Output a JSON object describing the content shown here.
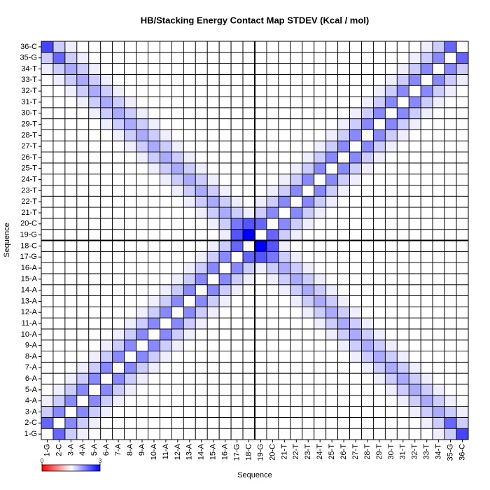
{
  "chart_data": {
    "type": "heatmap",
    "title": "HB/Stacking Energy Contact Map STDEV (Kcal / mol)",
    "x_label": "Sequence",
    "y_label": "Sequence",
    "x_categories": [
      "1-G",
      "2-C",
      "3-A",
      "4-A",
      "5-A",
      "6-A",
      "7-A",
      "8-A",
      "9-A",
      "10-A",
      "11-A",
      "12-A",
      "13-A",
      "14-A",
      "15-A",
      "16-A",
      "17-G",
      "18-C",
      "19-G",
      "20-C",
      "21-T",
      "22-T",
      "23-T",
      "24-T",
      "25-T",
      "26-T",
      "27-T",
      "28-T",
      "29-T",
      "30-T",
      "31-T",
      "32-T",
      "33-T",
      "34-T",
      "35-G",
      "36-C"
    ],
    "y_categories": [
      "1-G",
      "2-C",
      "3-A",
      "4-A",
      "5-A",
      "6-A",
      "7-A",
      "8-A",
      "9-A",
      "10-A",
      "11-A",
      "12-A",
      "13-A",
      "14-A",
      "15-A",
      "16-A",
      "17-G",
      "18-C",
      "19-G",
      "20-C",
      "21-T",
      "22-T",
      "23-T",
      "24-T",
      "25-T",
      "26-T",
      "27-T",
      "28-T",
      "29-T",
      "30-T",
      "31-T",
      "32-T",
      "33-T",
      "34-T",
      "35-G",
      "36-C"
    ],
    "colorbar": {
      "lim": [
        0,
        3
      ],
      "ticks": [
        0,
        3
      ],
      "colors": [
        "#ff0000",
        "#ffffff",
        "#0000ff"
      ]
    },
    "values": [
      [
        1.5,
        2.4,
        1.8,
        1.6,
        1.5,
        1.5,
        1.5,
        1.5,
        1.5,
        1.5,
        1.5,
        1.5,
        1.5,
        1.5,
        1.5,
        1.5,
        1.5,
        1.5,
        1.5,
        1.5,
        1.5,
        1.5,
        1.5,
        1.5,
        1.5,
        1.5,
        1.5,
        1.5,
        1.5,
        1.5,
        1.5,
        1.5,
        1.5,
        1.6,
        1.8,
        2.6
      ],
      [
        2.4,
        1.5,
        2.2,
        1.8,
        1.6,
        1.5,
        1.5,
        1.5,
        1.5,
        1.5,
        1.5,
        1.5,
        1.5,
        1.5,
        1.5,
        1.5,
        1.5,
        1.5,
        1.5,
        1.5,
        1.5,
        1.5,
        1.5,
        1.5,
        1.5,
        1.5,
        1.5,
        1.5,
        1.5,
        1.5,
        1.5,
        1.5,
        1.6,
        1.8,
        2.4,
        1.8
      ],
      [
        1.8,
        2.2,
        1.5,
        2.2,
        1.8,
        1.6,
        1.5,
        1.5,
        1.5,
        1.5,
        1.5,
        1.5,
        1.5,
        1.5,
        1.5,
        1.5,
        1.5,
        1.5,
        1.5,
        1.5,
        1.5,
        1.5,
        1.5,
        1.5,
        1.5,
        1.5,
        1.5,
        1.5,
        1.5,
        1.5,
        1.5,
        1.6,
        1.8,
        2.0,
        1.8,
        1.6
      ],
      [
        1.6,
        1.8,
        2.2,
        1.5,
        2.2,
        1.8,
        1.6,
        1.5,
        1.5,
        1.5,
        1.5,
        1.5,
        1.5,
        1.5,
        1.5,
        1.5,
        1.5,
        1.5,
        1.5,
        1.5,
        1.5,
        1.5,
        1.5,
        1.5,
        1.5,
        1.5,
        1.5,
        1.5,
        1.5,
        1.5,
        1.6,
        1.8,
        2.0,
        1.8,
        1.6,
        1.5
      ],
      [
        1.5,
        1.6,
        1.8,
        2.2,
        1.5,
        2.2,
        1.8,
        1.6,
        1.5,
        1.5,
        1.5,
        1.5,
        1.5,
        1.5,
        1.5,
        1.5,
        1.5,
        1.5,
        1.5,
        1.5,
        1.5,
        1.5,
        1.5,
        1.5,
        1.5,
        1.5,
        1.5,
        1.5,
        1.5,
        1.6,
        1.8,
        2.0,
        1.8,
        1.6,
        1.5,
        1.5
      ],
      [
        1.5,
        1.5,
        1.6,
        1.8,
        2.2,
        1.5,
        2.2,
        1.8,
        1.6,
        1.5,
        1.5,
        1.5,
        1.5,
        1.5,
        1.5,
        1.5,
        1.5,
        1.5,
        1.5,
        1.5,
        1.5,
        1.5,
        1.5,
        1.5,
        1.5,
        1.5,
        1.5,
        1.5,
        1.6,
        1.8,
        2.0,
        1.8,
        1.6,
        1.5,
        1.5,
        1.5
      ],
      [
        1.5,
        1.5,
        1.5,
        1.6,
        1.8,
        2.2,
        1.5,
        2.2,
        1.8,
        1.6,
        1.5,
        1.5,
        1.5,
        1.5,
        1.5,
        1.5,
        1.5,
        1.5,
        1.5,
        1.5,
        1.5,
        1.5,
        1.5,
        1.5,
        1.5,
        1.5,
        1.5,
        1.6,
        1.8,
        2.0,
        1.8,
        1.6,
        1.5,
        1.5,
        1.5,
        1.5
      ],
      [
        1.5,
        1.5,
        1.5,
        1.5,
        1.6,
        1.8,
        2.2,
        1.5,
        2.2,
        1.8,
        1.6,
        1.5,
        1.5,
        1.5,
        1.5,
        1.5,
        1.5,
        1.5,
        1.5,
        1.5,
        1.5,
        1.5,
        1.5,
        1.5,
        1.5,
        1.5,
        1.6,
        1.8,
        2.0,
        1.8,
        1.6,
        1.5,
        1.5,
        1.5,
        1.5,
        1.5
      ],
      [
        1.5,
        1.5,
        1.5,
        1.5,
        1.5,
        1.6,
        1.8,
        2.2,
        1.5,
        2.2,
        1.8,
        1.6,
        1.5,
        1.5,
        1.5,
        1.5,
        1.5,
        1.5,
        1.5,
        1.5,
        1.5,
        1.5,
        1.5,
        1.5,
        1.5,
        1.6,
        1.8,
        2.0,
        1.8,
        1.6,
        1.5,
        1.5,
        1.5,
        1.5,
        1.5,
        1.5
      ],
      [
        1.5,
        1.5,
        1.5,
        1.5,
        1.5,
        1.5,
        1.6,
        1.8,
        2.2,
        1.5,
        2.2,
        1.8,
        1.6,
        1.5,
        1.5,
        1.5,
        1.5,
        1.5,
        1.5,
        1.5,
        1.5,
        1.5,
        1.5,
        1.5,
        1.6,
        1.8,
        2.0,
        1.8,
        1.6,
        1.5,
        1.5,
        1.5,
        1.5,
        1.5,
        1.5,
        1.5
      ],
      [
        1.5,
        1.5,
        1.5,
        1.5,
        1.5,
        1.5,
        1.5,
        1.6,
        1.8,
        2.2,
        1.5,
        2.2,
        1.8,
        1.6,
        1.5,
        1.5,
        1.5,
        1.5,
        1.5,
        1.5,
        1.5,
        1.5,
        1.5,
        1.6,
        1.8,
        2.0,
        1.8,
        1.6,
        1.5,
        1.5,
        1.5,
        1.5,
        1.5,
        1.5,
        1.5,
        1.5
      ],
      [
        1.5,
        1.5,
        1.5,
        1.5,
        1.5,
        1.5,
        1.5,
        1.5,
        1.6,
        1.8,
        2.2,
        1.5,
        2.2,
        1.8,
        1.6,
        1.5,
        1.5,
        1.5,
        1.5,
        1.5,
        1.5,
        1.5,
        1.6,
        1.8,
        2.0,
        1.8,
        1.6,
        1.5,
        1.5,
        1.5,
        1.5,
        1.5,
        1.5,
        1.5,
        1.5,
        1.5
      ],
      [
        1.5,
        1.5,
        1.5,
        1.5,
        1.5,
        1.5,
        1.5,
        1.5,
        1.5,
        1.6,
        1.8,
        2.2,
        1.5,
        2.2,
        1.8,
        1.6,
        1.5,
        1.5,
        1.5,
        1.5,
        1.5,
        1.6,
        1.8,
        2.0,
        1.8,
        1.6,
        1.5,
        1.5,
        1.5,
        1.5,
        1.5,
        1.5,
        1.5,
        1.5,
        1.5,
        1.5
      ],
      [
        1.5,
        1.5,
        1.5,
        1.5,
        1.5,
        1.5,
        1.5,
        1.5,
        1.5,
        1.5,
        1.6,
        1.8,
        2.2,
        1.5,
        2.2,
        1.8,
        1.6,
        1.5,
        1.5,
        1.5,
        1.6,
        1.8,
        2.0,
        1.8,
        1.6,
        1.5,
        1.5,
        1.5,
        1.5,
        1.5,
        1.5,
        1.5,
        1.5,
        1.5,
        1.5,
        1.5
      ],
      [
        1.5,
        1.5,
        1.5,
        1.5,
        1.5,
        1.5,
        1.5,
        1.5,
        1.5,
        1.5,
        1.5,
        1.6,
        1.8,
        2.2,
        1.5,
        2.2,
        1.8,
        1.6,
        1.5,
        1.6,
        1.8,
        2.0,
        1.8,
        1.6,
        1.5,
        1.5,
        1.5,
        1.5,
        1.5,
        1.5,
        1.5,
        1.5,
        1.5,
        1.5,
        1.5,
        1.5
      ],
      [
        1.5,
        1.5,
        1.5,
        1.5,
        1.5,
        1.5,
        1.5,
        1.5,
        1.5,
        1.5,
        1.5,
        1.5,
        1.6,
        1.8,
        2.2,
        1.5,
        2.2,
        1.8,
        1.6,
        1.8,
        2.0,
        1.8,
        1.6,
        1.5,
        1.5,
        1.5,
        1.5,
        1.5,
        1.5,
        1.5,
        1.5,
        1.5,
        1.5,
        1.5,
        1.5,
        1.5
      ],
      [
        1.5,
        1.5,
        1.5,
        1.5,
        1.5,
        1.5,
        1.5,
        1.5,
        1.5,
        1.5,
        1.5,
        1.5,
        1.5,
        1.6,
        1.8,
        2.2,
        1.5,
        2.4,
        2.5,
        2.3,
        1.8,
        1.6,
        1.5,
        1.5,
        1.5,
        1.5,
        1.5,
        1.5,
        1.5,
        1.5,
        1.5,
        1.5,
        1.5,
        1.5,
        1.5,
        1.5
      ],
      [
        1.5,
        1.5,
        1.5,
        1.5,
        1.5,
        1.5,
        1.5,
        1.5,
        1.5,
        1.5,
        1.5,
        1.5,
        1.5,
        1.5,
        1.6,
        1.8,
        2.4,
        1.5,
        3.0,
        2.5,
        1.6,
        1.5,
        1.5,
        1.5,
        1.5,
        1.5,
        1.5,
        1.5,
        1.5,
        1.5,
        1.5,
        1.5,
        1.5,
        1.5,
        1.5,
        1.5
      ],
      [
        1.5,
        1.5,
        1.5,
        1.5,
        1.5,
        1.5,
        1.5,
        1.5,
        1.5,
        1.5,
        1.5,
        1.5,
        1.5,
        1.5,
        1.5,
        1.6,
        2.5,
        3.0,
        1.5,
        2.4,
        1.8,
        1.6,
        1.5,
        1.5,
        1.5,
        1.5,
        1.5,
        1.5,
        1.5,
        1.5,
        1.5,
        1.5,
        1.5,
        1.5,
        1.5,
        1.5
      ],
      [
        1.5,
        1.5,
        1.5,
        1.5,
        1.5,
        1.5,
        1.5,
        1.5,
        1.5,
        1.5,
        1.5,
        1.5,
        1.5,
        1.5,
        1.6,
        1.8,
        2.3,
        2.5,
        2.4,
        1.5,
        2.2,
        1.8,
        1.6,
        1.5,
        1.5,
        1.5,
        1.5,
        1.5,
        1.5,
        1.5,
        1.5,
        1.5,
        1.5,
        1.5,
        1.5,
        1.5
      ],
      [
        1.5,
        1.5,
        1.5,
        1.5,
        1.5,
        1.5,
        1.5,
        1.5,
        1.5,
        1.5,
        1.5,
        1.5,
        1.5,
        1.6,
        1.8,
        2.0,
        1.8,
        1.6,
        1.8,
        2.2,
        1.5,
        2.2,
        1.8,
        1.6,
        1.5,
        1.5,
        1.5,
        1.5,
        1.5,
        1.5,
        1.5,
        1.5,
        1.5,
        1.5,
        1.5,
        1.5
      ],
      [
        1.5,
        1.5,
        1.5,
        1.5,
        1.5,
        1.5,
        1.5,
        1.5,
        1.5,
        1.5,
        1.5,
        1.5,
        1.6,
        1.8,
        2.0,
        1.8,
        1.6,
        1.5,
        1.6,
        1.8,
        2.2,
        1.5,
        2.2,
        1.8,
        1.6,
        1.5,
        1.5,
        1.5,
        1.5,
        1.5,
        1.5,
        1.5,
        1.5,
        1.5,
        1.5,
        1.5
      ],
      [
        1.5,
        1.5,
        1.5,
        1.5,
        1.5,
        1.5,
        1.5,
        1.5,
        1.5,
        1.5,
        1.5,
        1.6,
        1.8,
        2.0,
        1.8,
        1.6,
        1.5,
        1.5,
        1.5,
        1.6,
        1.8,
        2.2,
        1.5,
        2.2,
        1.8,
        1.6,
        1.5,
        1.5,
        1.5,
        1.5,
        1.5,
        1.5,
        1.5,
        1.5,
        1.5,
        1.5
      ],
      [
        1.5,
        1.5,
        1.5,
        1.5,
        1.5,
        1.5,
        1.5,
        1.5,
        1.5,
        1.5,
        1.6,
        1.8,
        2.0,
        1.8,
        1.6,
        1.5,
        1.5,
        1.5,
        1.5,
        1.5,
        1.6,
        1.8,
        2.2,
        1.5,
        2.2,
        1.8,
        1.6,
        1.5,
        1.5,
        1.5,
        1.5,
        1.5,
        1.5,
        1.5,
        1.5,
        1.5
      ],
      [
        1.5,
        1.5,
        1.5,
        1.5,
        1.5,
        1.5,
        1.5,
        1.5,
        1.5,
        1.6,
        1.8,
        2.0,
        1.8,
        1.6,
        1.5,
        1.5,
        1.5,
        1.5,
        1.5,
        1.5,
        1.5,
        1.6,
        1.8,
        2.2,
        1.5,
        2.2,
        1.8,
        1.6,
        1.5,
        1.5,
        1.5,
        1.5,
        1.5,
        1.5,
        1.5,
        1.5
      ],
      [
        1.5,
        1.5,
        1.5,
        1.5,
        1.5,
        1.5,
        1.5,
        1.5,
        1.6,
        1.8,
        2.0,
        1.8,
        1.6,
        1.5,
        1.5,
        1.5,
        1.5,
        1.5,
        1.5,
        1.5,
        1.5,
        1.5,
        1.6,
        1.8,
        2.2,
        1.5,
        2.2,
        1.8,
        1.6,
        1.5,
        1.5,
        1.5,
        1.5,
        1.5,
        1.5,
        1.5
      ],
      [
        1.5,
        1.5,
        1.5,
        1.5,
        1.5,
        1.5,
        1.5,
        1.6,
        1.8,
        2.0,
        1.8,
        1.6,
        1.5,
        1.5,
        1.5,
        1.5,
        1.5,
        1.5,
        1.5,
        1.5,
        1.5,
        1.5,
        1.5,
        1.6,
        1.8,
        2.2,
        1.5,
        2.2,
        1.8,
        1.6,
        1.5,
        1.5,
        1.5,
        1.5,
        1.5,
        1.5
      ],
      [
        1.5,
        1.5,
        1.5,
        1.5,
        1.5,
        1.5,
        1.6,
        1.8,
        2.0,
        1.8,
        1.6,
        1.5,
        1.5,
        1.5,
        1.5,
        1.5,
        1.5,
        1.5,
        1.5,
        1.5,
        1.5,
        1.5,
        1.5,
        1.5,
        1.6,
        1.8,
        2.2,
        1.5,
        2.2,
        1.8,
        1.6,
        1.5,
        1.5,
        1.5,
        1.5,
        1.5
      ],
      [
        1.5,
        1.5,
        1.5,
        1.5,
        1.5,
        1.6,
        1.8,
        2.0,
        1.8,
        1.6,
        1.5,
        1.5,
        1.5,
        1.5,
        1.5,
        1.5,
        1.5,
        1.5,
        1.5,
        1.5,
        1.5,
        1.5,
        1.5,
        1.5,
        1.5,
        1.6,
        1.8,
        2.2,
        1.5,
        2.2,
        1.8,
        1.6,
        1.5,
        1.5,
        1.5,
        1.5
      ],
      [
        1.5,
        1.5,
        1.5,
        1.5,
        1.6,
        1.8,
        2.0,
        1.8,
        1.6,
        1.5,
        1.5,
        1.5,
        1.5,
        1.5,
        1.5,
        1.5,
        1.5,
        1.5,
        1.5,
        1.5,
        1.5,
        1.5,
        1.5,
        1.5,
        1.5,
        1.5,
        1.6,
        1.8,
        2.2,
        1.5,
        2.2,
        1.8,
        1.6,
        1.5,
        1.5,
        1.5
      ],
      [
        1.5,
        1.5,
        1.5,
        1.6,
        1.8,
        2.0,
        1.8,
        1.6,
        1.5,
        1.5,
        1.5,
        1.5,
        1.5,
        1.5,
        1.5,
        1.5,
        1.5,
        1.5,
        1.5,
        1.5,
        1.5,
        1.5,
        1.5,
        1.5,
        1.5,
        1.5,
        1.5,
        1.6,
        1.8,
        2.2,
        1.5,
        2.2,
        1.8,
        1.6,
        1.5,
        1.5
      ],
      [
        1.5,
        1.5,
        1.6,
        1.8,
        2.0,
        1.8,
        1.6,
        1.5,
        1.5,
        1.5,
        1.5,
        1.5,
        1.5,
        1.5,
        1.5,
        1.5,
        1.5,
        1.5,
        1.5,
        1.5,
        1.5,
        1.5,
        1.5,
        1.5,
        1.5,
        1.5,
        1.5,
        1.5,
        1.6,
        1.8,
        2.2,
        1.5,
        2.2,
        1.8,
        1.6,
        1.5
      ],
      [
        1.5,
        1.6,
        1.8,
        2.0,
        1.8,
        1.6,
        1.5,
        1.5,
        1.5,
        1.5,
        1.5,
        1.5,
        1.5,
        1.5,
        1.5,
        1.5,
        1.5,
        1.5,
        1.5,
        1.5,
        1.5,
        1.5,
        1.5,
        1.5,
        1.5,
        1.5,
        1.5,
        1.5,
        1.5,
        1.6,
        1.8,
        2.2,
        1.5,
        2.2,
        1.8,
        1.6
      ],
      [
        1.6,
        1.8,
        2.0,
        1.8,
        1.6,
        1.5,
        1.5,
        1.5,
        1.5,
        1.5,
        1.5,
        1.5,
        1.5,
        1.5,
        1.5,
        1.5,
        1.5,
        1.5,
        1.5,
        1.5,
        1.5,
        1.5,
        1.5,
        1.5,
        1.5,
        1.5,
        1.5,
        1.5,
        1.5,
        1.5,
        1.6,
        1.8,
        2.2,
        1.5,
        2.2,
        1.8
      ],
      [
        1.8,
        2.4,
        1.8,
        1.6,
        1.5,
        1.5,
        1.5,
        1.5,
        1.5,
        1.5,
        1.5,
        1.5,
        1.5,
        1.5,
        1.5,
        1.5,
        1.5,
        1.5,
        1.5,
        1.5,
        1.5,
        1.5,
        1.5,
        1.5,
        1.5,
        1.5,
        1.5,
        1.5,
        1.5,
        1.5,
        1.5,
        1.6,
        1.8,
        2.2,
        1.5,
        2.4
      ],
      [
        2.6,
        1.8,
        1.6,
        1.5,
        1.5,
        1.5,
        1.5,
        1.5,
        1.5,
        1.5,
        1.5,
        1.5,
        1.5,
        1.5,
        1.5,
        1.5,
        1.5,
        1.5,
        1.5,
        1.5,
        1.5,
        1.5,
        1.5,
        1.5,
        1.5,
        1.5,
        1.5,
        1.5,
        1.5,
        1.5,
        1.5,
        1.5,
        1.6,
        1.8,
        2.4,
        1.5
      ]
    ]
  }
}
